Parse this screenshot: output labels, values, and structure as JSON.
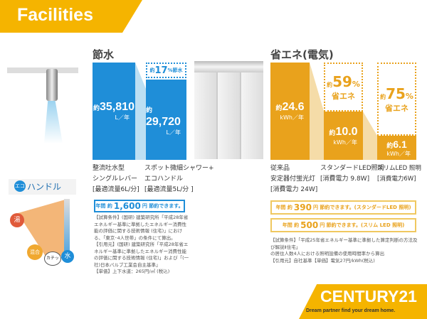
{
  "header": {
    "title": "Facilities"
  },
  "water": {
    "title": "節水",
    "bar1": {
      "prefix": "約",
      "value": "35,810",
      "unit": "L／年",
      "label": [
        "整流吐水型",
        "シングルレバー",
        "[最適流量6L/分]"
      ]
    },
    "bar2": {
      "prefix": "約",
      "value": "29,720",
      "unit": "L／年",
      "label": [
        "スポット微細シャワー+",
        "エコハンドル",
        "[最適流量5L/分 ]"
      ]
    },
    "saving_badge": {
      "prefix": "約",
      "value": "17",
      "suffix": "%節水"
    },
    "annual": {
      "pre": "年間 約",
      "value": "1,600",
      "post": "円 節約できます。"
    },
    "notes": [
      "【試算条件】(国研) 建築研究所「平成28年省エネルギー基準に準拠したエネルギー消費性能の評価に関する技術情報 (住宅)」における、「東京･4人世帯」の条件にて算出。",
      "【引用元】(国研) 建築研究所「平成28年省エネルギー基準に準拠したエネルギー消費性能の評価に関する技術情報 (住宅)」および「(一社)日本バルブ工業会自主基準」",
      "【単価】上下水道：265円/㎥ (税込)"
    ]
  },
  "eco_handle": {
    "logo_mark": "エコ",
    "logo_text": "ハンドル",
    "hot": "湯",
    "mix": "混合",
    "click": "カチッ",
    "cold": "水"
  },
  "energy": {
    "title": "省エネ(電気)",
    "bar1": {
      "prefix": "約",
      "value": "24.6",
      "unit": "kWh／年",
      "label": [
        "従来品",
        "安定器付蛍光灯",
        "[消費電力 24W]"
      ]
    },
    "bar2": {
      "prefix": "約",
      "value": "10.0",
      "unit": "kWh／年",
      "label": [
        "スタンダードLED照明",
        "[消費電力 9.8W]"
      ],
      "saving": {
        "prefix": "約",
        "value": "59",
        "pct": "%",
        "text": "省エネ"
      }
    },
    "bar3": {
      "prefix": "約",
      "value": "6.1",
      "unit": "kWh／年",
      "label": [
        "スリムLED 照明",
        "[消費電力6W]"
      ],
      "saving": {
        "prefix": "約",
        "value": "75",
        "pct": "%",
        "text": "省エネ"
      }
    },
    "annual1": {
      "pre": "年間 約",
      "value": "390",
      "post": "円 節約できます。(スタンダードLED 照明)"
    },
    "annual2": {
      "pre": "年間 約",
      "value": "500",
      "post": "円 節約できます。(スリム LED 照明)"
    },
    "notes": [
      "【試算条件】「平成25年省エネルギー基準に準拠した算定判断の方法及び解説Ⅱ住宅」",
      "の居住人数4人における照明設備の使用時間率から算出",
      "【引用元】自社基準【単価】電気27円/kWh(税込)"
    ]
  },
  "brand": {
    "name": "CENTURY21",
    "tagline": "Dream partner find your dream home."
  },
  "colors": {
    "yellow": "#f5b400",
    "orange": "#e9a21c",
    "blue": "#1f8ed8"
  }
}
